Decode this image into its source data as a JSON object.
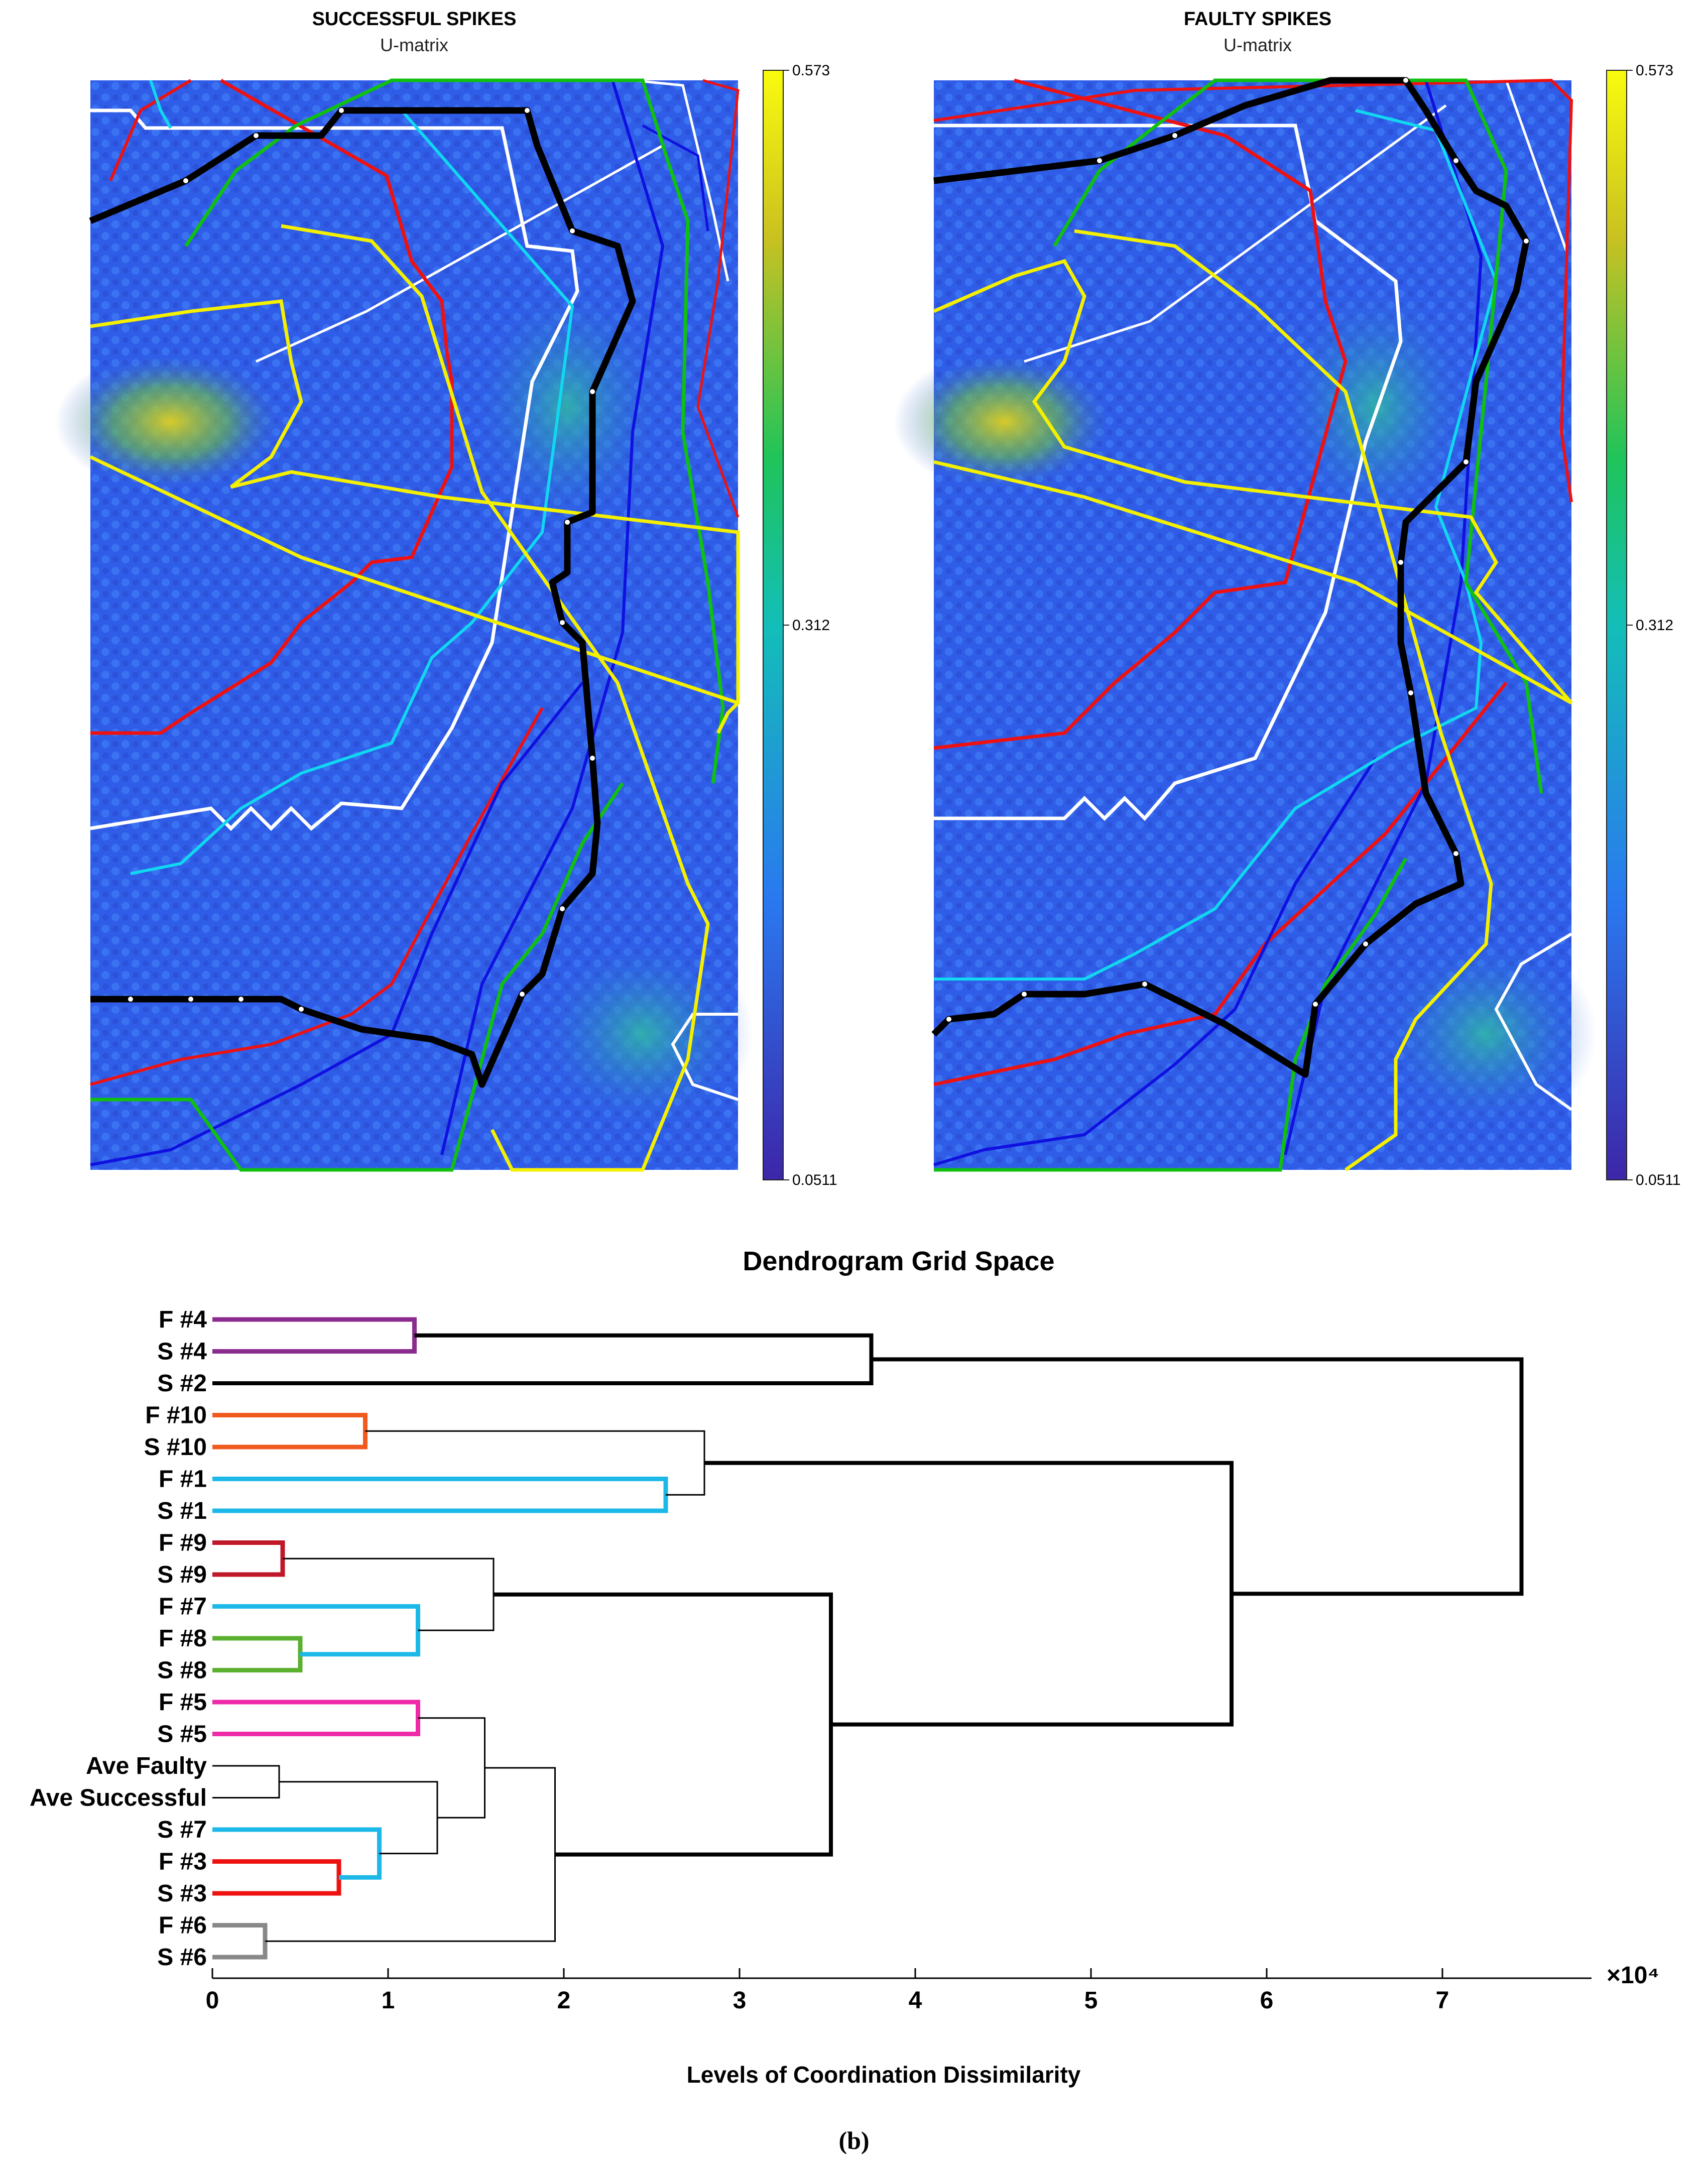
{
  "panels": [
    {
      "title": "SUCCESSFUL SPIKES",
      "subtitle": "U-matrix"
    },
    {
      "title": "FAULTY SPIKES",
      "subtitle": "U-matrix"
    }
  ],
  "colorbar": {
    "max": "0.573",
    "mid": "0.312",
    "min": "0.0511",
    "colors": [
      "#3d26a8",
      "#2a78f0",
      "#13beb8",
      "#1fc45a",
      "#c9c120",
      "#f9fb0e"
    ]
  },
  "trajectory_colors": {
    "black": "#000000",
    "white": "#ffffff",
    "red": "#ee1111",
    "blue": "#1010e0",
    "cyan": "#10d8f0",
    "green": "#10c010",
    "yellow": "#f5f000"
  },
  "chart_data": {
    "type": "dendrogram",
    "title": "Dendrogram Grid Space",
    "xlabel": "Levels of Coordination Dissimilarity",
    "x_multiplier": "×10⁴",
    "xlim": [
      0,
      7.8
    ],
    "xticks": [
      "0",
      "1",
      "2",
      "3",
      "4",
      "5",
      "6",
      "7"
    ],
    "leaves": [
      "F #4",
      "S #4",
      "S #2",
      "F #10",
      "S #10",
      "F #1",
      "S #1",
      "F #9",
      "S #9",
      "F #7",
      "F #8",
      "S #8",
      "F #5",
      "S #5",
      "Ave Faulty",
      "Ave Successful",
      "S #7",
      "F #3",
      "S #3",
      "F #6",
      "S #6"
    ],
    "merges": [
      {
        "a": "F #4",
        "b": "S #4",
        "height": 1.15,
        "color": "#8a2b8e"
      },
      {
        "a": "F #10",
        "b": "S #10",
        "height": 0.87,
        "color": "#f05a1e"
      },
      {
        "a": "F #1",
        "b": "S #1",
        "height": 2.58,
        "color": "#1bb8e8"
      },
      {
        "a": "F #9",
        "b": "S #9",
        "height": 0.4,
        "color": "#c01828"
      },
      {
        "a": "F #8",
        "b": "S #8",
        "height": 0.5,
        "color": "#5cb030"
      },
      {
        "a": "F #5",
        "b": "S #5",
        "height": 1.17,
        "color": "#ee2aa8"
      },
      {
        "a": "Ave Faulty",
        "b": "Ave Successful",
        "height": 0.38,
        "color": "#000000"
      },
      {
        "a": "F #3",
        "b": "S #3",
        "height": 0.72,
        "color": "#ee1111"
      },
      {
        "a": "F #6",
        "b": "S #6",
        "height": 0.3,
        "color": "#888888"
      },
      {
        "a": "F #7",
        "b": "F #8 + S #8",
        "height": 1.17,
        "color": "#1bb8e8"
      },
      {
        "a": "S #7",
        "b": "F #3 + S #3",
        "height": 0.95,
        "color": "#1bb8e8"
      },
      {
        "a": "F #4 + S #4",
        "b": "S #2",
        "height": 3.75,
        "color": "#000000"
      },
      {
        "a": "F #10 + S #10",
        "b": "F #1 + S #1",
        "height": 2.8,
        "color": "#000000"
      },
      {
        "a": "F #9 + S #9",
        "b": "F #7 + F #8 + S #8",
        "height": 1.6,
        "color": "#000000"
      },
      {
        "a": "Ave Faulty + Ave Successful",
        "b": "S #7 + F #3 + S #3",
        "height": 1.28,
        "color": "#000000"
      },
      {
        "a": "F #5 + S #5",
        "b": "Ave + S #7 group",
        "height": 1.55,
        "color": "#000000"
      },
      {
        "a": "F #5 … S #3 group",
        "b": "F #6 + S #6",
        "height": 1.95,
        "color": "#000000"
      },
      {
        "a": "F #9 … S #8 group",
        "b": "F #5 … S #6 group",
        "height": 3.52,
        "color": "#000000"
      },
      {
        "a": "F #10 … S #1 group",
        "b": "F #9 … S #6 group",
        "height": 5.8,
        "color": "#000000"
      },
      {
        "a": "F #4 … S #2 group",
        "b": "all remaining",
        "height": 7.45,
        "color": "#000000"
      }
    ]
  },
  "caption": "(b)"
}
